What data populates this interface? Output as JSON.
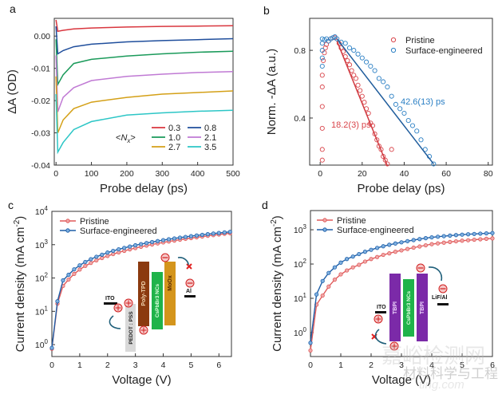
{
  "panel_labels": [
    "a",
    "b",
    "c",
    "d"
  ],
  "watermark": {
    "cn1": "嘉峪检测网",
    "cn2": "材料科学与工程",
    "latin": "ting.com"
  },
  "chart_data": [
    {
      "type": "line",
      "panel": "a",
      "xlabel": "Probe delay (ps)",
      "ylabel": "ΔA (OD)",
      "xlim": [
        -5,
        500
      ],
      "ylim": [
        -0.04,
        0.0055
      ],
      "xticks": [
        0,
        100,
        200,
        300,
        400,
        500
      ],
      "yticks": [
        0.0,
        -0.01,
        -0.02,
        -0.03,
        -0.04
      ],
      "ytick_labels": [
        "0.00",
        "-0.01",
        "-0.02",
        "-0.03",
        "-0.04"
      ],
      "legend_title": "<Nx>",
      "legend_placement": "bottom-right",
      "x": [
        0,
        5,
        20,
        50,
        100,
        200,
        300,
        400,
        500
      ],
      "series": [
        {
          "name": "0.3",
          "color": "#d9363e",
          "values": [
            0.005,
            0.0015,
            0.0018,
            0.0022,
            0.0025,
            0.0028,
            0.003,
            0.0031,
            0.0032
          ]
        },
        {
          "name": "0.8",
          "color": "#1f4e9c",
          "values": [
            0.003,
            -0.0055,
            -0.0045,
            -0.0033,
            -0.0025,
            -0.0018,
            -0.0014,
            -0.0011,
            -0.0008
          ]
        },
        {
          "name": "1.0",
          "color": "#1a9a5a",
          "values": [
            -0.001,
            -0.015,
            -0.012,
            -0.0085,
            -0.0072,
            -0.0062,
            -0.0055,
            -0.005,
            -0.0047
          ]
        },
        {
          "name": "2.1",
          "color": "#c07ad4",
          "values": [
            -0.006,
            -0.0235,
            -0.019,
            -0.016,
            -0.0138,
            -0.0125,
            -0.0118,
            -0.0113,
            -0.011
          ]
        },
        {
          "name": "2.7",
          "color": "#d4a017",
          "values": [
            -0.0125,
            -0.03,
            -0.026,
            -0.0225,
            -0.0205,
            -0.019,
            -0.018,
            -0.0175,
            -0.017
          ]
        },
        {
          "name": "3.5",
          "color": "#2cc6c6",
          "values": [
            -0.018,
            -0.036,
            -0.033,
            -0.029,
            -0.0265,
            -0.0245,
            -0.0238,
            -0.0233,
            -0.023
          ]
        }
      ]
    },
    {
      "type": "scatter",
      "panel": "b",
      "xlabel": "Probe delay (ps)",
      "ylabel": "Norm. -ΔA (a.u.)",
      "yscale": "log",
      "xlim": [
        -5,
        82
      ],
      "ylim": [
        0.247,
        1.11
      ],
      "xticks": [
        0,
        20,
        40,
        60,
        80
      ],
      "yticks": [
        0.4,
        0.8
      ],
      "legend_placement": "top-right",
      "series": [
        {
          "name": "Pristine",
          "color": "#d9454b",
          "x": [
            1,
            1,
            1,
            1,
            1,
            1,
            1.5,
            2,
            2.5,
            3,
            4,
            5,
            7,
            9,
            10,
            11,
            12,
            13,
            14,
            15,
            16,
            17,
            18,
            19,
            20,
            21,
            22,
            23,
            24,
            25,
            26,
            27,
            28,
            29,
            30,
            31,
            32,
            34
          ],
          "y": [
            0.26,
            0.29,
            0.36,
            0.45,
            0.55,
            0.62,
            0.72,
            0.78,
            0.82,
            0.85,
            0.88,
            0.9,
            0.91,
            0.86,
            0.82,
            0.79,
            0.75,
            0.72,
            0.69,
            0.65,
            0.62,
            0.6,
            0.56,
            0.53,
            0.5,
            0.47,
            0.44,
            0.42,
            0.38,
            0.37,
            0.34,
            0.32,
            0.3,
            0.29,
            0.27,
            0.26,
            0.25,
            0.29
          ],
          "fit": {
            "label": "18.2(3) ps",
            "x": [
              8,
              32
            ],
            "y": [
              0.88,
              0.245
            ]
          }
        },
        {
          "name": "Surface-engineered",
          "color": "#2a7fc4",
          "x": [
            1,
            1,
            1,
            1,
            1,
            2,
            3,
            4,
            5,
            6,
            7,
            8,
            10,
            12,
            14,
            16,
            18,
            20,
            22,
            24,
            26,
            28,
            30,
            32,
            34,
            36,
            38,
            40,
            42,
            44,
            46,
            48,
            50,
            52,
            54
          ],
          "y": [
            0.68,
            0.74,
            0.8,
            0.86,
            0.9,
            0.89,
            0.9,
            0.88,
            0.9,
            0.91,
            0.92,
            0.9,
            0.87,
            0.86,
            0.82,
            0.8,
            0.77,
            0.74,
            0.71,
            0.68,
            0.65,
            0.6,
            0.58,
            0.55,
            0.5,
            0.46,
            0.44,
            0.42,
            0.39,
            0.37,
            0.35,
            0.32,
            0.29,
            0.27,
            0.25
          ],
          "fit": {
            "label": "42.6(13) ps",
            "x": [
              8,
              54
            ],
            "y": [
              0.9,
              0.25
            ]
          }
        }
      ]
    },
    {
      "type": "line",
      "panel": "c",
      "xlabel": "Voltage (V)",
      "ylabel": "Current density (mA cm-2)",
      "yscale": "log",
      "xlim": [
        0,
        6.45
      ],
      "ylim": [
        0.44,
        10000
      ],
      "xticks": [
        0,
        1,
        2,
        3,
        4,
        5,
        6
      ],
      "yticks": [
        1,
        10,
        100,
        1000,
        10000
      ],
      "legend_placement": "top-left",
      "x": [
        0,
        0.2,
        0.4,
        0.6,
        0.8,
        1.0,
        1.2,
        1.4,
        1.6,
        1.8,
        2.0,
        2.2,
        2.4,
        2.6,
        2.8,
        3.0,
        3.2,
        3.4,
        3.6,
        3.8,
        4.0,
        4.2,
        4.4,
        4.6,
        4.8,
        5.0,
        5.2,
        5.4,
        5.6,
        5.8,
        6.0,
        6.2,
        6.4
      ],
      "series": [
        {
          "name": "Pristine",
          "color": "#e05a5a",
          "values": [
            0.75,
            17,
            58,
            90,
            133,
            180,
            230,
            283,
            340,
            398,
            459,
            522,
            587,
            654,
            723,
            793,
            865,
            939,
            1015,
            1091,
            1169,
            1249,
            1330,
            1413,
            1496,
            1580,
            1667,
            1753,
            1843,
            1931,
            2022,
            2113,
            2205
          ]
        },
        {
          "name": "Surface-engineered",
          "color": "#1e5fa8",
          "values": [
            0.8,
            20,
            85,
            125,
            182,
            240,
            303,
            367,
            434,
            500,
            580,
            650,
            726,
            800,
            880,
            960,
            1040,
            1120,
            1200,
            1285,
            1370,
            1455,
            1540,
            1625,
            1710,
            1800,
            1890,
            1975,
            2065,
            2155,
            2245,
            2340,
            2430
          ]
        }
      ],
      "inset": {
        "layers": [
          {
            "label": "ITO",
            "color": "#111111"
          },
          {
            "label": "PEDOT : PSS",
            "color": "#d9d9d9"
          },
          {
            "label": "Poly-TPD",
            "color": "#8b3a0f"
          },
          {
            "label": "CsPbBr3 NCs",
            "color": "#1fb34a"
          },
          {
            "label": "MoOx",
            "color": "#d4951c"
          },
          {
            "label": "Al",
            "color": "#111111"
          }
        ]
      }
    },
    {
      "type": "line",
      "panel": "d",
      "xlabel": "Voltage (V)",
      "ylabel": "Current density (mA cm-2)",
      "yscale": "log",
      "xlim": [
        0,
        6
      ],
      "ylim": [
        0.2,
        3630
      ],
      "xticks": [
        0,
        1,
        2,
        3,
        4,
        5,
        6
      ],
      "yticks": [
        1,
        10,
        100,
        1000
      ],
      "legend_placement": "top-left",
      "x": [
        0,
        0.2,
        0.4,
        0.6,
        0.8,
        1.0,
        1.2,
        1.4,
        1.6,
        1.8,
        2.0,
        2.2,
        2.4,
        2.6,
        2.8,
        3.0,
        3.2,
        3.4,
        3.6,
        3.8,
        4.0,
        4.2,
        4.4,
        4.6,
        4.8,
        5.0,
        5.2,
        5.4,
        5.6,
        5.8,
        6.0
      ],
      "series": [
        {
          "name": "Pristine",
          "color": "#e05a5a",
          "values": [
            0.3,
            6.5,
            12,
            22,
            35,
            50,
            65,
            80,
            95,
            118,
            140,
            160,
            185,
            205,
            228,
            250,
            275,
            300,
            325,
            352,
            380,
            400,
            420,
            440,
            460,
            480,
            495,
            512,
            528,
            545,
            560
          ]
        },
        {
          "name": "Surface-engineered",
          "color": "#1e5fa8",
          "values": [
            0.5,
            13,
            32,
            55,
            80,
            110,
            140,
            165,
            195,
            228,
            260,
            295,
            330,
            365,
            398,
            430,
            465,
            500,
            535,
            568,
            600,
            625,
            650,
            675,
            698,
            720,
            738,
            755,
            770,
            786,
            800
          ]
        }
      ],
      "inset": {
        "layers": [
          {
            "label": "ITO",
            "color": "#111111"
          },
          {
            "label": "TBPI",
            "color": "#7b2aa8"
          },
          {
            "label": "CsPbBr3 NCs",
            "color": "#1fb34a"
          },
          {
            "label": "TBPI",
            "color": "#7b2aa8"
          },
          {
            "label": "LiF/Al",
            "color": "#111111"
          }
        ]
      }
    }
  ]
}
